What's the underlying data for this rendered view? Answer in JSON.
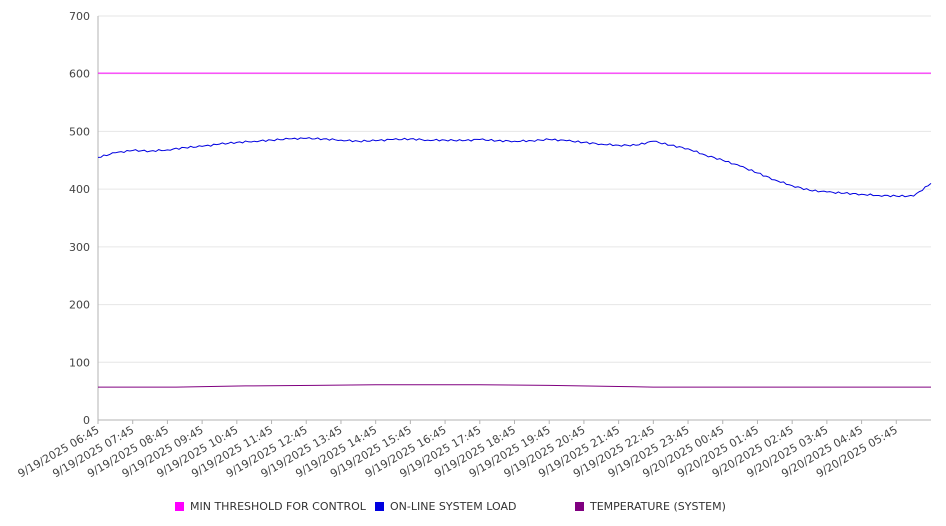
{
  "chart_data": {
    "type": "line",
    "title": "",
    "xlabel": "",
    "ylabel": "",
    "ylim": [
      0,
      700
    ],
    "yticks": [
      0,
      100,
      200,
      300,
      400,
      500,
      600,
      700
    ],
    "grid": true,
    "legend_position": "bottom",
    "x_tick_labels": [
      "9/19/2025 06:45",
      "9/19/2025 07:45",
      "9/19/2025 08:45",
      "9/19/2025 09:45",
      "9/19/2025 10:45",
      "9/19/2025 11:45",
      "9/19/2025 12:45",
      "9/19/2025 13:45",
      "9/19/2025 14:45",
      "9/19/2025 15:45",
      "9/19/2025 16:45",
      "9/19/2025 17:45",
      "9/19/2025 18:45",
      "9/19/2025 19:45",
      "9/19/2025 20:45",
      "9/19/2025 21:45",
      "9/19/2025 22:45",
      "9/19/2025 23:45",
      "9/20/2025 00:45",
      "9/20/2025 01:45",
      "9/20/2025 02:45",
      "9/20/2025 03:45",
      "9/20/2025 04:45",
      "9/20/2025 05:45"
    ],
    "series": [
      {
        "name": "MIN THRESHOLD FOR CONTROL",
        "color": "#ff00ff",
        "x": [
          "9/19/2025 06:45",
          "9/20/2025 06:45"
        ],
        "values": [
          601,
          601
        ]
      },
      {
        "name": "ON-LINE SYSTEM LOAD",
        "color": "#0000e0",
        "x": [
          "9/19/2025 06:45",
          "9/19/2025 07:15",
          "9/19/2025 07:45",
          "9/19/2025 08:15",
          "9/19/2025 08:45",
          "9/19/2025 09:15",
          "9/19/2025 09:45",
          "9/19/2025 10:15",
          "9/19/2025 10:45",
          "9/19/2025 11:15",
          "9/19/2025 11:45",
          "9/19/2025 12:15",
          "9/19/2025 12:45",
          "9/19/2025 13:15",
          "9/19/2025 13:45",
          "9/19/2025 14:15",
          "9/19/2025 14:45",
          "9/19/2025 15:15",
          "9/19/2025 15:45",
          "9/19/2025 16:15",
          "9/19/2025 16:45",
          "9/19/2025 17:15",
          "9/19/2025 17:45",
          "9/19/2025 18:15",
          "9/19/2025 18:45",
          "9/19/2025 19:15",
          "9/19/2025 19:45",
          "9/19/2025 20:15",
          "9/19/2025 20:45",
          "9/19/2025 21:15",
          "9/19/2025 21:45",
          "9/19/2025 22:15",
          "9/19/2025 22:45",
          "9/19/2025 23:15",
          "9/19/2025 23:45",
          "9/20/2025 00:15",
          "9/20/2025 00:45",
          "9/20/2025 01:15",
          "9/20/2025 01:45",
          "9/20/2025 02:15",
          "9/20/2025 02:45",
          "9/20/2025 03:15",
          "9/20/2025 03:45",
          "9/20/2025 04:15",
          "9/20/2025 04:45",
          "9/20/2025 05:15",
          "9/20/2025 05:45",
          "9/20/2025 06:15",
          "9/20/2025 06:45"
        ],
        "values": [
          455,
          463,
          467,
          466,
          468,
          472,
          474,
          478,
          481,
          483,
          485,
          487,
          488,
          487,
          485,
          483,
          484,
          486,
          487,
          485,
          485,
          484,
          486,
          484,
          483,
          484,
          486,
          484,
          481,
          478,
          476,
          476,
          483,
          476,
          470,
          459,
          450,
          440,
          428,
          416,
          406,
          398,
          395,
          393,
          391,
          389,
          388,
          388,
          410
        ]
      },
      {
        "name": "TEMPERATURE (SYSTEM)",
        "color": "#800080",
        "x": [
          "9/19/2025 06:45",
          "9/19/2025 09:00",
          "9/19/2025 11:00",
          "9/19/2025 13:00",
          "9/19/2025 14:45",
          "9/19/2025 17:45",
          "9/19/2025 19:45",
          "9/19/2025 21:45",
          "9/19/2025 22:45",
          "9/20/2025 06:45"
        ],
        "values": [
          57,
          57,
          59,
          60,
          61,
          61,
          60,
          58,
          57,
          57
        ]
      }
    ]
  }
}
